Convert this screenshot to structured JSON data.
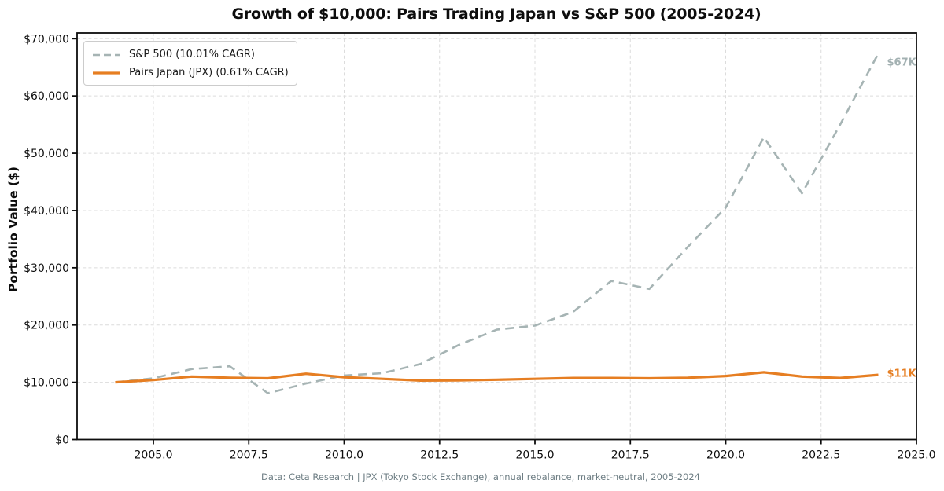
{
  "title": "Growth of $10,000: Pairs Trading Japan vs S&P 500 (2005-2024)",
  "ylabel": "Portfolio Value ($)",
  "footer": "Data: Ceta Research | JPX (Tokyo Stock Exchange), annual rebalance, market-neutral, 2005-2024",
  "legend": {
    "sp500": "S&P 500 (10.01% CAGR)",
    "pairs": "Pairs Japan (JPX) (0.61% CAGR)"
  },
  "annotations": {
    "sp500_end": "$67K",
    "pairs_end": "$11K"
  },
  "colors": {
    "sp500": "#a6b4b4",
    "pairs": "#e67e22",
    "grid": "#dcdcdc",
    "annotation_sp500": "#a3b1b2",
    "annotation_pairs": "#e67e22",
    "footer_text": "#6e7e84",
    "spine": "#0d0d0d"
  },
  "chart_data": {
    "type": "line",
    "x": [
      2004,
      2005,
      2006,
      2007,
      2008,
      2009,
      2010,
      2011,
      2012,
      2013,
      2014,
      2015,
      2016,
      2017,
      2018,
      2019,
      2020,
      2021,
      2022,
      2023,
      2024
    ],
    "series": [
      {
        "name": "S&P 500 (10.01% CAGR)",
        "style": "dashed",
        "color_key": "sp500",
        "values": [
          10000,
          10700,
          12300,
          12800,
          8100,
          9800,
          11200,
          11600,
          13200,
          16500,
          19200,
          19900,
          22300,
          27700,
          26300,
          33600,
          40500,
          52800,
          43000,
          55000,
          67400
        ]
      },
      {
        "name": "Pairs Japan (JPX) (0.61% CAGR)",
        "style": "solid",
        "color_key": "pairs",
        "values": [
          10000,
          10400,
          11000,
          10800,
          10700,
          11500,
          10900,
          10600,
          10300,
          10350,
          10450,
          10600,
          10750,
          10750,
          10700,
          10800,
          11100,
          11750,
          11000,
          10750,
          11300
        ]
      }
    ],
    "xlim": [
      2003,
      2025
    ],
    "ylim": [
      0,
      71000
    ],
    "xticks": {
      "values": [
        2005,
        2007.5,
        2010,
        2012.5,
        2015,
        2017.5,
        2020,
        2022.5,
        2025
      ],
      "labels": [
        "2005.0",
        "2007.5",
        "2010.0",
        "2012.5",
        "2015.0",
        "2017.5",
        "2020.0",
        "2022.5",
        "2025.0"
      ]
    },
    "yticks": {
      "values": [
        0,
        10000,
        20000,
        30000,
        40000,
        50000,
        60000,
        70000
      ],
      "labels": [
        "$0",
        "$10,000",
        "$20,000",
        "$30,000",
        "$40,000",
        "$50,000",
        "$60,000",
        "$70,000"
      ]
    },
    "grid": true,
    "legend_position": "upper left"
  }
}
